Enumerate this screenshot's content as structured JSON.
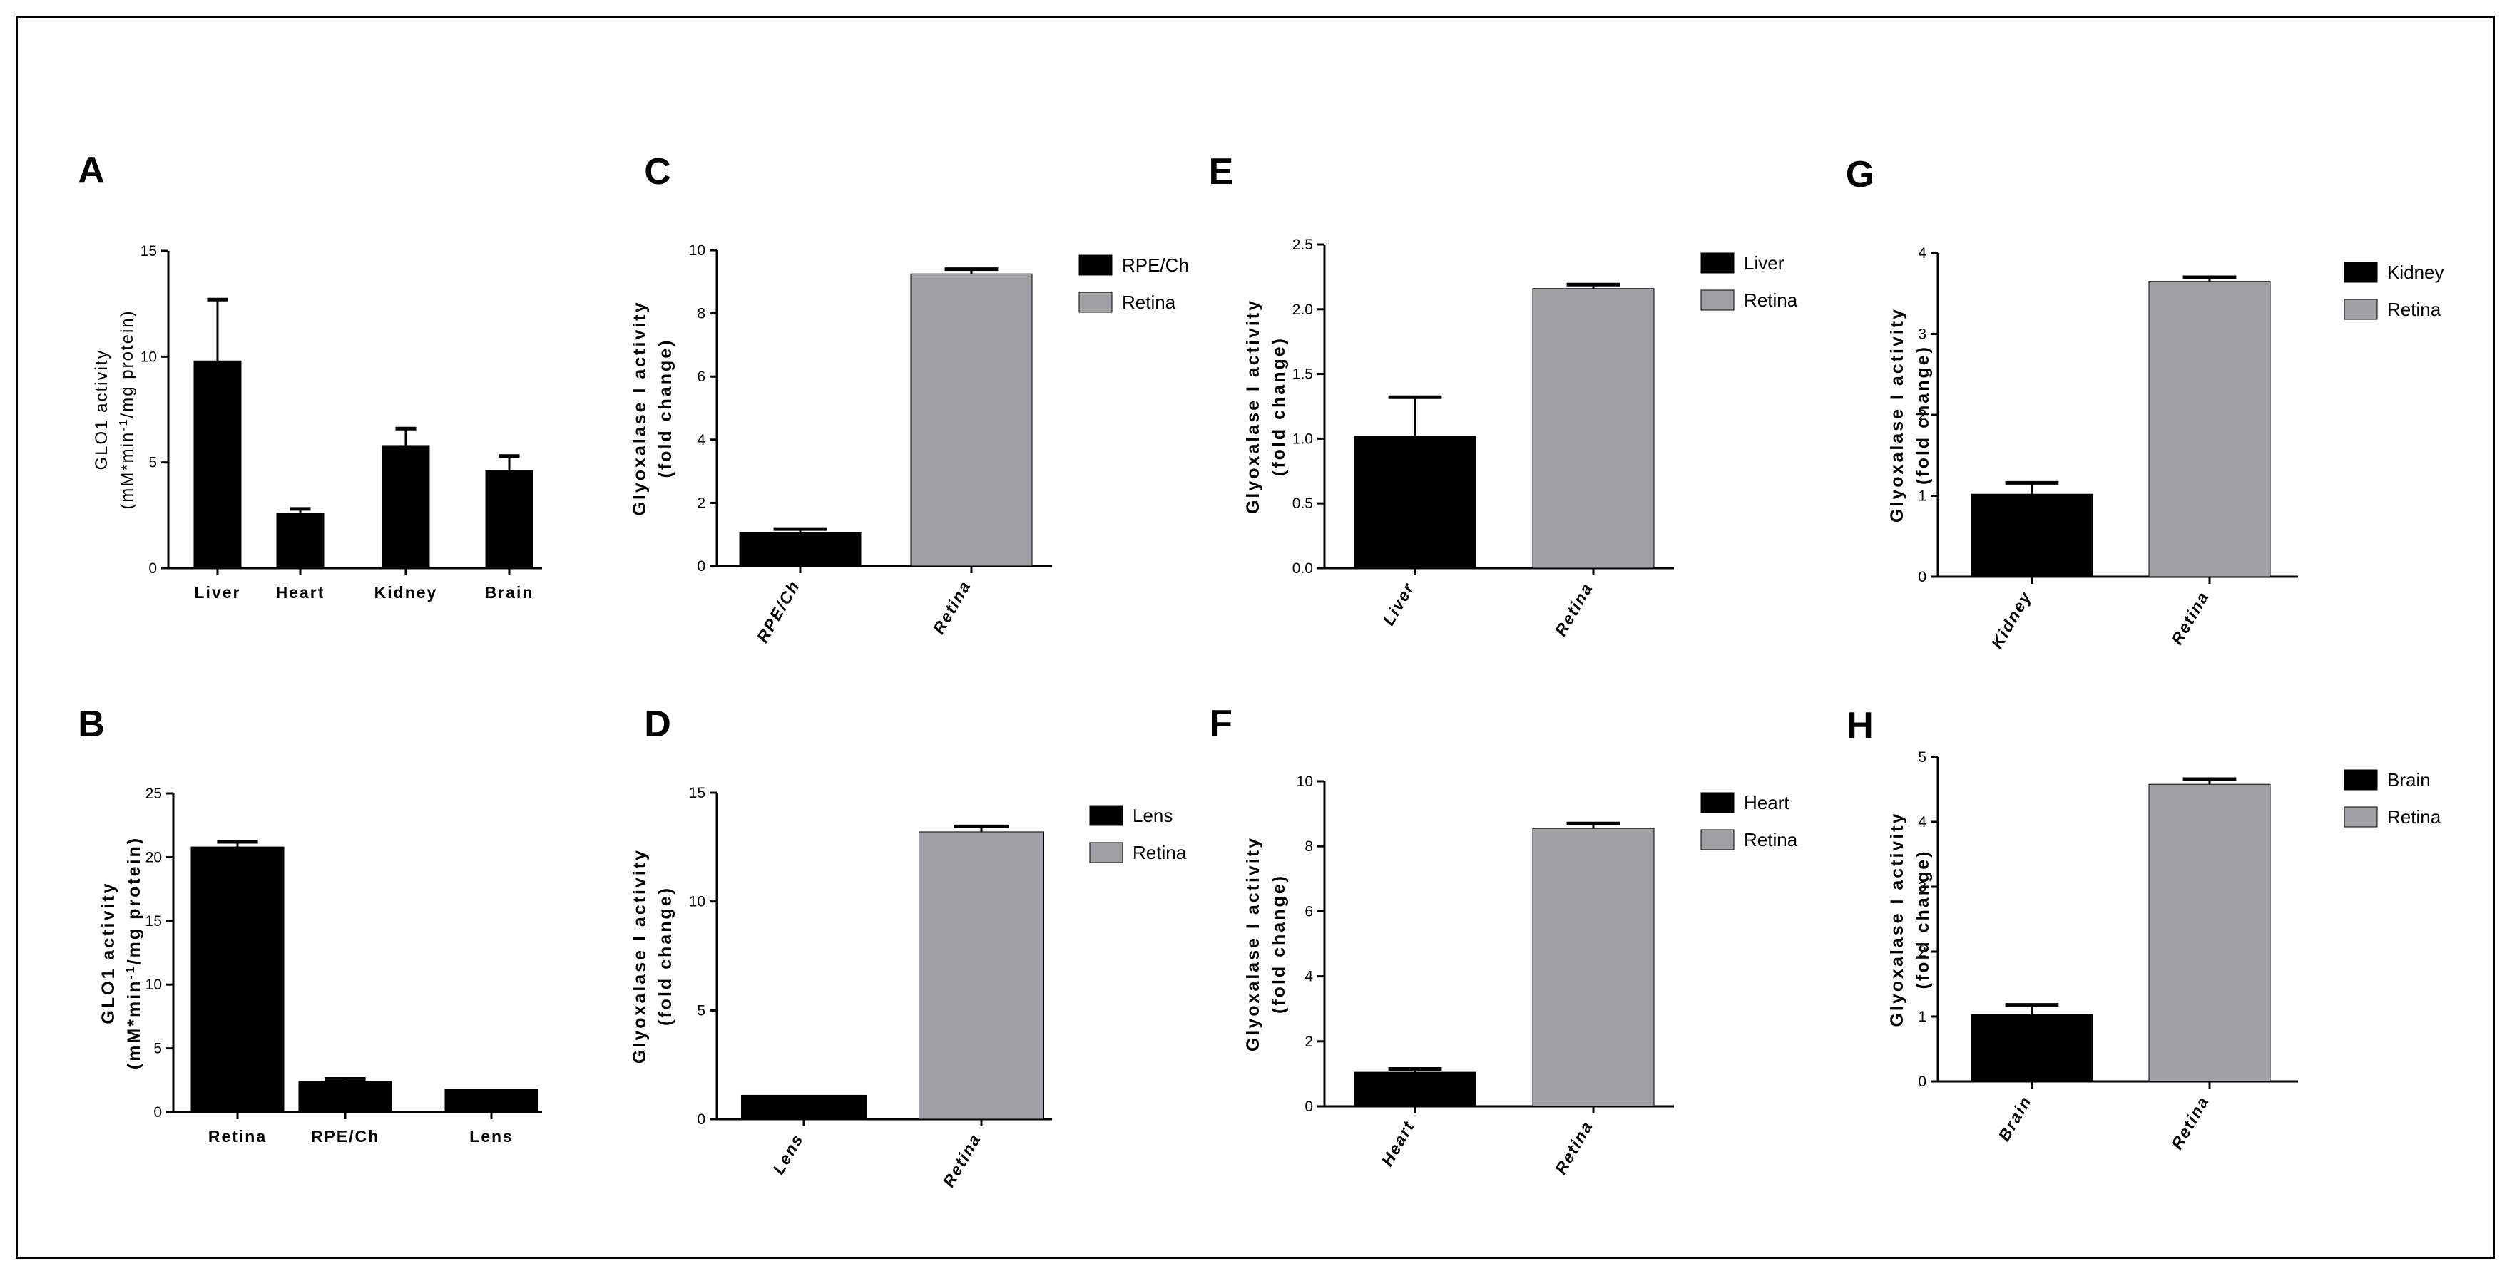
{
  "colors": {
    "primary": "#000000",
    "secondary": "#a2a1a6",
    "frame": "#000000"
  },
  "chart_data": [
    {
      "panel": "A",
      "type": "bar",
      "categories": [
        "Liver",
        "Heart",
        "Kidney",
        "Brain"
      ],
      "values": [
        9.8,
        2.6,
        5.8,
        4.6
      ],
      "errors": [
        2.9,
        0.2,
        0.8,
        0.7
      ],
      "bar_colors": [
        "#000000",
        "#000000",
        "#000000",
        "#000000"
      ],
      "ylim": [
        0,
        15
      ],
      "yticks": [
        "0",
        "5",
        "10",
        "15"
      ],
      "ytick_values": [
        0,
        5,
        10,
        15
      ],
      "ylabel_lines": [
        "GLO1 activity",
        "(mM*min",
        "-1",
        "/mg protein)"
      ],
      "ylabel_bold": false,
      "rotated_labels": false,
      "legend": []
    },
    {
      "panel": "B",
      "type": "bar",
      "categories": [
        "Retina",
        "RPE/Ch",
        "Lens"
      ],
      "values": [
        20.8,
        2.4,
        1.8
      ],
      "errors": [
        0.4,
        0.2,
        0.0
      ],
      "bar_colors": [
        "#000000",
        "#000000",
        "#000000"
      ],
      "ylim": [
        0,
        25
      ],
      "yticks": [
        "0",
        "5",
        "10",
        "15",
        "20",
        "25"
      ],
      "ytick_values": [
        0,
        5,
        10,
        15,
        20,
        25
      ],
      "ylabel_lines": [
        "GLO1 activity",
        "(mM*min",
        "-1",
        "/mg protein)"
      ],
      "ylabel_bold": true,
      "rotated_labels": false,
      "legend": []
    },
    {
      "panel": "C",
      "type": "bar",
      "categories": [
        "RPE/Ch",
        "Retina"
      ],
      "values": [
        1.05,
        9.25
      ],
      "errors": [
        0.12,
        0.15
      ],
      "bar_colors": [
        "#000000",
        "#a2a1a6"
      ],
      "ylim": [
        0,
        10
      ],
      "yticks": [
        "0",
        "2",
        "4",
        "6",
        "8",
        "10"
      ],
      "ytick_values": [
        0,
        2,
        4,
        6,
        8,
        10
      ],
      "ylabel_lines": [
        "Glyoxalase I activity",
        "(fold change)"
      ],
      "ylabel_bold": true,
      "rotated_labels": true,
      "legend": [
        "RPE/Ch",
        "Retina"
      ]
    },
    {
      "panel": "D",
      "type": "bar",
      "categories": [
        "Lens",
        "Retina"
      ],
      "values": [
        1.1,
        13.2
      ],
      "errors": [
        0.0,
        0.25
      ],
      "bar_colors": [
        "#000000",
        "#a2a1a6"
      ],
      "ylim": [
        0,
        15
      ],
      "yticks": [
        "0",
        "5",
        "10",
        "15"
      ],
      "ytick_values": [
        0,
        5,
        10,
        15
      ],
      "ylabel_lines": [
        "Glyoxalase I activity",
        "(fold change)"
      ],
      "ylabel_bold": true,
      "rotated_labels": true,
      "legend": [
        "Lens",
        "Retina"
      ]
    },
    {
      "panel": "E",
      "type": "bar",
      "categories": [
        "Liver",
        "Retina"
      ],
      "values": [
        1.02,
        2.16
      ],
      "errors": [
        0.3,
        0.03
      ],
      "bar_colors": [
        "#000000",
        "#a2a1a6"
      ],
      "ylim": [
        0,
        2.5
      ],
      "yticks": [
        "0.0",
        "0.5",
        "1.0",
        "1.5",
        "2.0",
        "2.5"
      ],
      "ytick_values": [
        0,
        0.5,
        1.0,
        1.5,
        2.0,
        2.5
      ],
      "ylabel_lines": [
        "Glyoxalase I activity",
        "(fold change)"
      ],
      "ylabel_bold": true,
      "rotated_labels": true,
      "legend": [
        "Liver",
        "Retina"
      ]
    },
    {
      "panel": "F",
      "type": "bar",
      "categories": [
        "Heart",
        "Retina"
      ],
      "values": [
        1.05,
        8.55
      ],
      "errors": [
        0.1,
        0.15
      ],
      "bar_colors": [
        "#000000",
        "#a2a1a6"
      ],
      "ylim": [
        0,
        10
      ],
      "yticks": [
        "0",
        "2",
        "4",
        "6",
        "8",
        "10"
      ],
      "ytick_values": [
        0,
        2,
        4,
        6,
        8,
        10
      ],
      "ylabel_lines": [
        "Glyoxalase I activity",
        "(fold change)"
      ],
      "ylabel_bold": true,
      "rotated_labels": true,
      "legend": [
        "Heart",
        "Retina"
      ]
    },
    {
      "panel": "G",
      "type": "bar",
      "categories": [
        "Kidney",
        "Retina"
      ],
      "values": [
        1.02,
        3.65
      ],
      "errors": [
        0.14,
        0.05
      ],
      "bar_colors": [
        "#000000",
        "#a2a1a6"
      ],
      "ylim": [
        0,
        4
      ],
      "yticks": [
        "0",
        "1",
        "2",
        "3",
        "4"
      ],
      "ytick_values": [
        0,
        1,
        2,
        3,
        4
      ],
      "ylabel_lines": [
        "Glyoxalase I activity",
        "(fold change)"
      ],
      "ylabel_bold": true,
      "rotated_labels": true,
      "legend": [
        "Kidney",
        "Retina"
      ]
    },
    {
      "panel": "H",
      "type": "bar",
      "categories": [
        "Brain",
        "Retina"
      ],
      "values": [
        1.03,
        4.58
      ],
      "errors": [
        0.15,
        0.08
      ],
      "bar_colors": [
        "#000000",
        "#a2a1a6"
      ],
      "ylim": [
        0,
        5
      ],
      "yticks": [
        "0",
        "1",
        "2",
        "3",
        "4",
        "5"
      ],
      "ytick_values": [
        0,
        1,
        2,
        3,
        4,
        5
      ],
      "ylabel_lines": [
        "Glyoxalase I activity",
        "(fold change)"
      ],
      "ylabel_bold": true,
      "rotated_labels": true,
      "legend": [
        "Brain",
        "Retina"
      ]
    }
  ]
}
